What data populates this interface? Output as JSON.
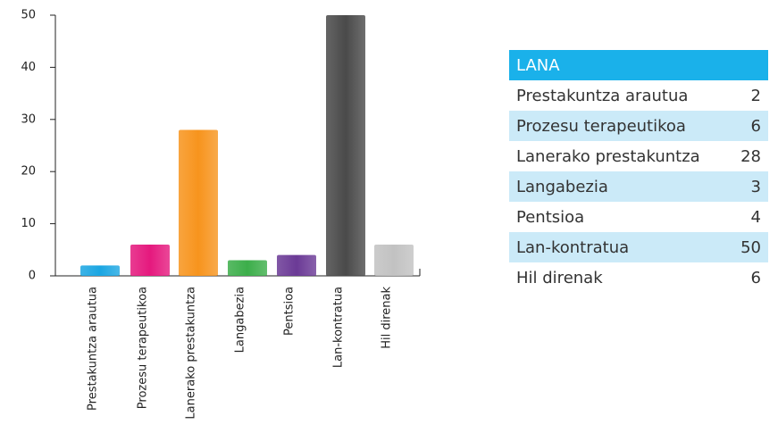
{
  "chart_data": {
    "type": "bar",
    "categories": [
      "Prestakuntza arautua",
      "Prozesu terapeutikoa",
      "Lanerako prestakuntza",
      "Langabezia",
      "Pentsioa",
      "Lan-kontratua",
      "Hil direnak"
    ],
    "values": [
      2,
      6,
      28,
      3,
      4,
      50,
      6
    ],
    "colors": [
      "#1ba6e2",
      "#e5197e",
      "#f7941d",
      "#3cae4a",
      "#6b3a96",
      "#4a4a4a",
      "#c2c2c2"
    ],
    "ylim": [
      0,
      50
    ],
    "yticks": [
      0,
      10,
      20,
      30,
      40,
      50
    ]
  },
  "table": {
    "title": "LANA"
  }
}
